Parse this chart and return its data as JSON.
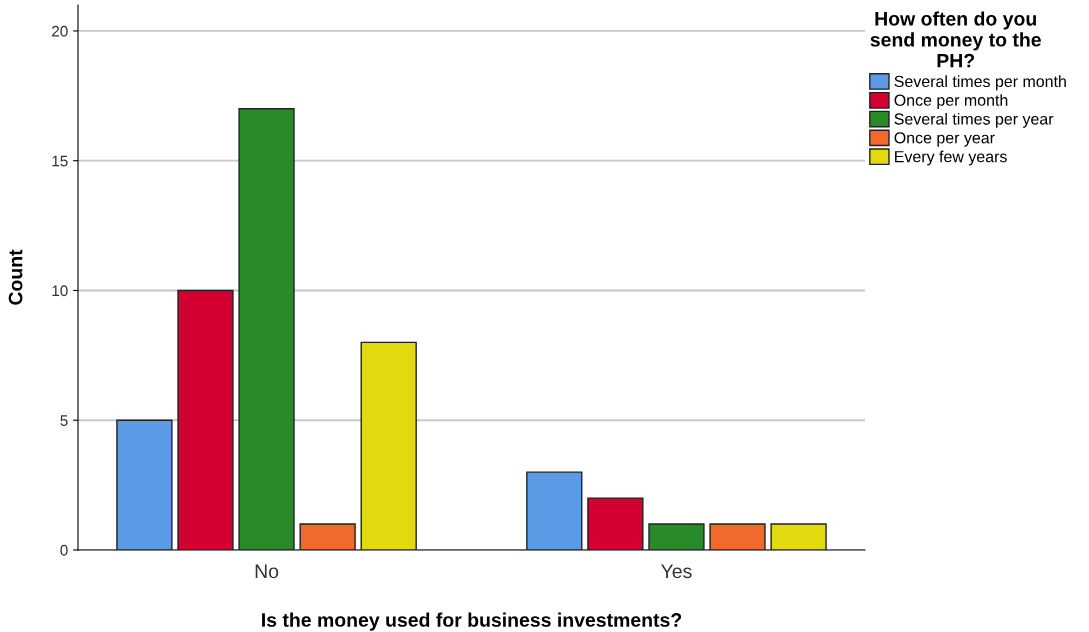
{
  "chart_data": {
    "type": "bar",
    "xlabel": "Is the money used for business investments?",
    "ylabel": "Count",
    "legend_title": "How often do you\nsend money to the\nPH?",
    "categories": [
      "No",
      "Yes"
    ],
    "series": [
      {
        "name": "Several times per month",
        "color": "#5b9be6",
        "values": [
          5,
          3
        ]
      },
      {
        "name": "Once per month",
        "color": "#d50032",
        "values": [
          10,
          2
        ]
      },
      {
        "name": "Several times per year",
        "color": "#2a8a2a",
        "values": [
          17,
          1
        ]
      },
      {
        "name": "Once per year",
        "color": "#f26a2b",
        "values": [
          1,
          1
        ]
      },
      {
        "name": "Every few years",
        "color": "#e2d90f",
        "values": [
          8,
          1
        ]
      }
    ],
    "ylim": [
      0,
      21
    ],
    "yticks": [
      0,
      5,
      10,
      15,
      20
    ],
    "grid": "y",
    "legend": "top right"
  }
}
